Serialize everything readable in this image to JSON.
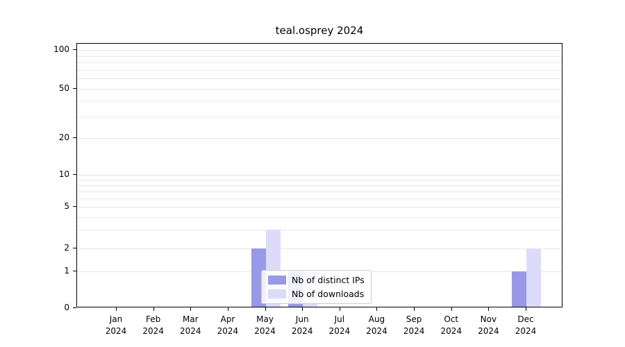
{
  "chart_data": {
    "type": "bar",
    "title": "teal.osprey 2024",
    "categories": [
      "Jan 2024",
      "Feb 2024",
      "Mar 2024",
      "Apr 2024",
      "May 2024",
      "Jun 2024",
      "Jul 2024",
      "Aug 2024",
      "Sep 2024",
      "Oct 2024",
      "Nov 2024",
      "Dec 2024"
    ],
    "series": [
      {
        "name": "Nb of distinct IPs",
        "color": "#9999e8",
        "values": [
          0,
          0,
          0,
          0,
          2,
          1,
          0,
          0,
          0,
          0,
          0,
          1
        ]
      },
      {
        "name": "Nb of downloads",
        "color": "#dcdcfa",
        "values": [
          0,
          0,
          0,
          0,
          3,
          1,
          0,
          0,
          0,
          0,
          0,
          2
        ]
      }
    ],
    "yscale": "log-like (linear below 1)",
    "yticks": [
      0,
      1,
      2,
      5,
      10,
      20,
      50,
      100
    ],
    "ylim": [
      0,
      110
    ],
    "grid": true,
    "legend_position": "lower center",
    "xlabel": "",
    "ylabel": ""
  },
  "colors": {
    "background": "#ffffff",
    "axis": "#000000",
    "gridline": "#e6e6e6",
    "legend_border": "#cccccc",
    "series_distinct_ips": "#9999e8",
    "series_downloads": "#dcdcfa"
  }
}
